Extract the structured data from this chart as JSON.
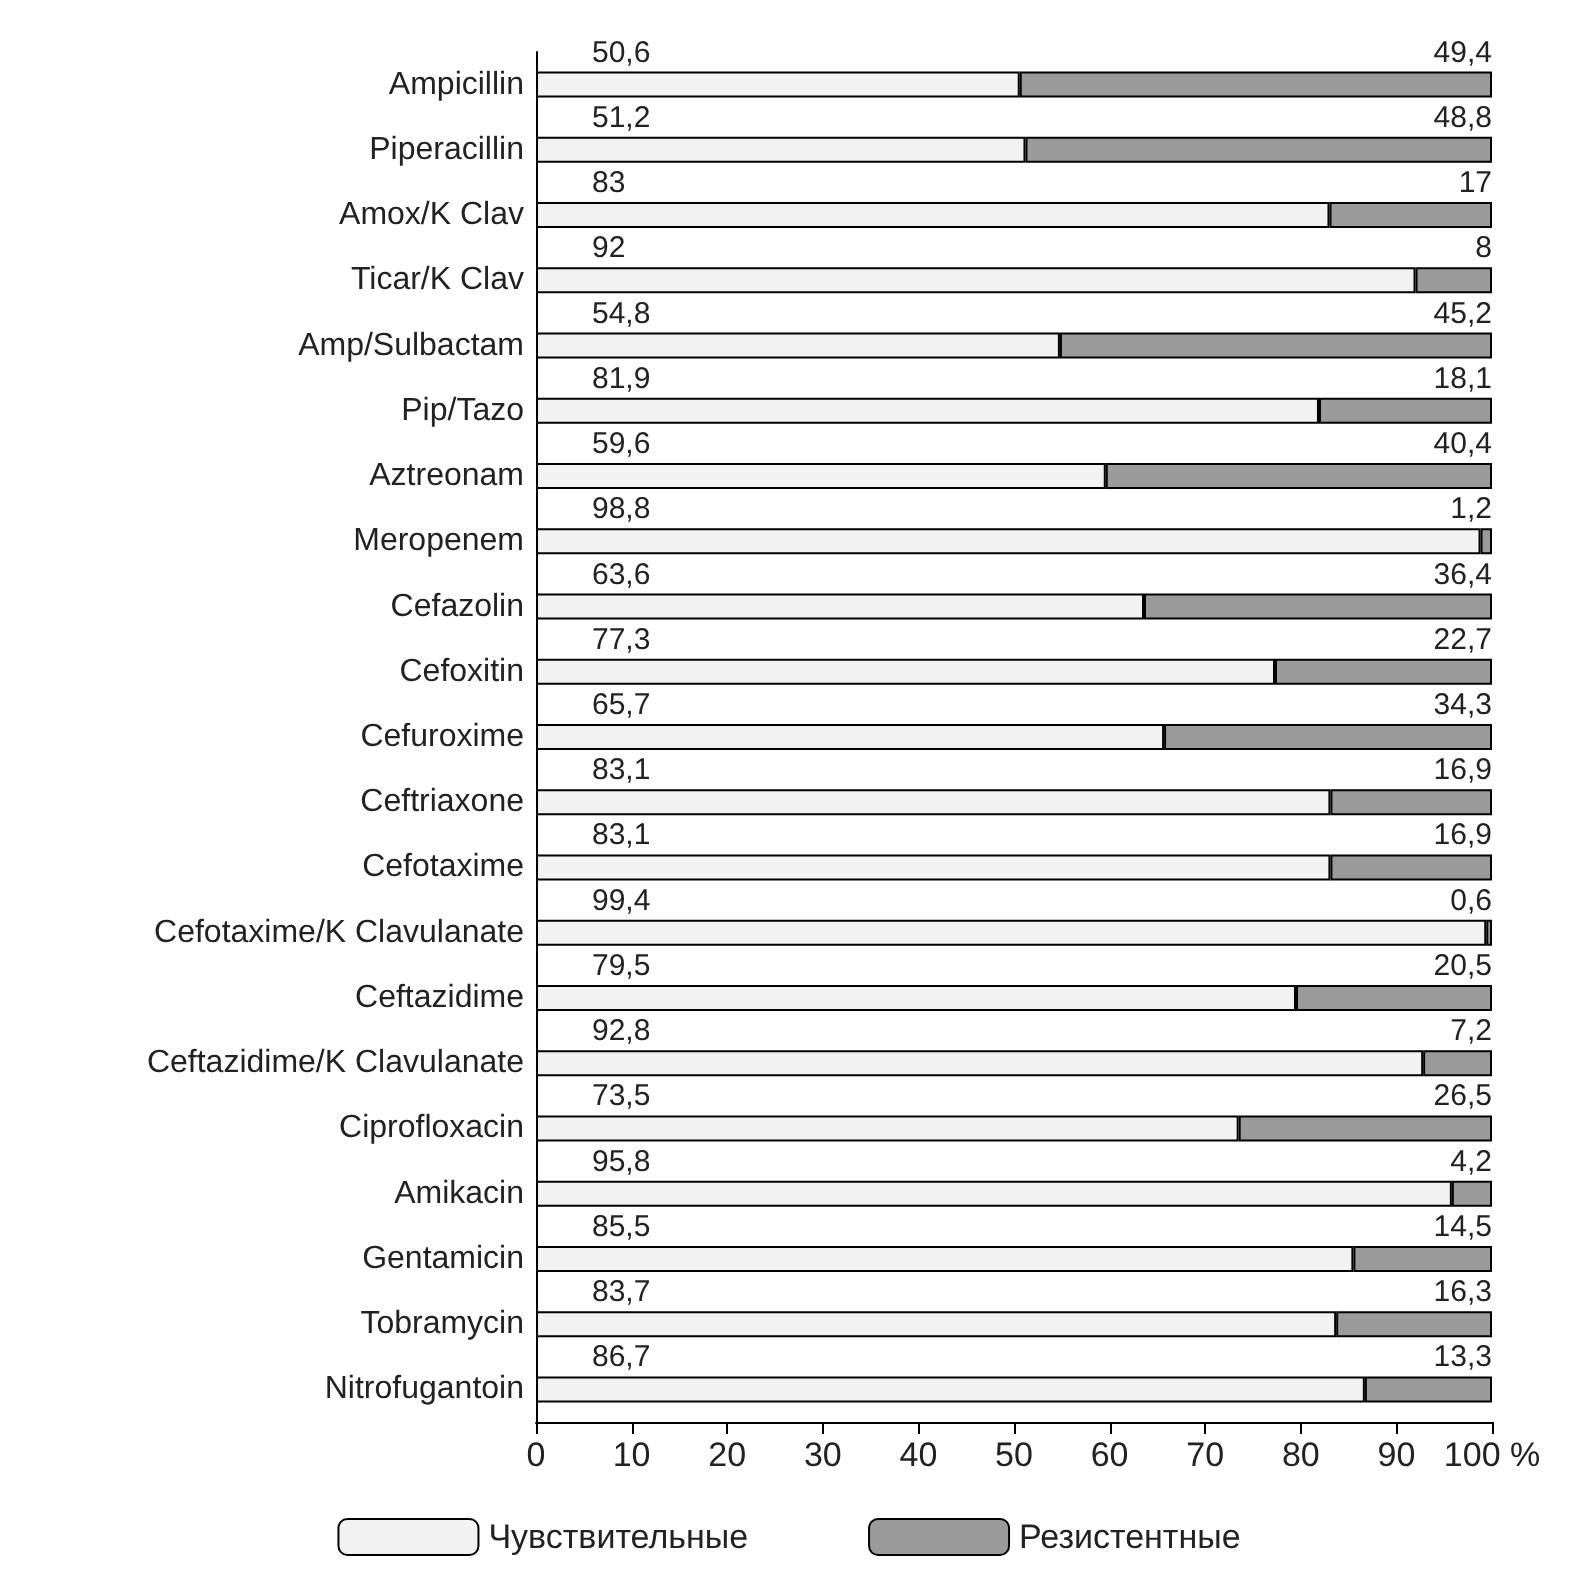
{
  "chart_data": {
    "type": "bar",
    "orientation": "horizontal",
    "stacked": true,
    "categories": [
      "Ampicillin",
      "Piperacillin",
      "Amox/K Clav",
      "Ticar/K Clav",
      "Amp/Sulbactam",
      "Pip/Tazo",
      "Aztreonam",
      "Meropenem",
      "Cefazolin",
      "Cefoxitin",
      "Cefuroxime",
      "Ceftriaxone",
      "Cefotaxime",
      "Cefotaxime/K Clavulanate",
      "Ceftazidime",
      "Ceftazidime/K Clavulanate",
      "Ciprofloxacin",
      "Amikacin",
      "Gentamicin",
      "Tobramycin",
      "Nitrofugantoin"
    ],
    "series": [
      {
        "name": "Чувствительные",
        "color": "#f2f2f2",
        "values": [
          50.6,
          51.2,
          83,
          92,
          54.8,
          81.9,
          59.6,
          98.8,
          63.6,
          77.3,
          65.7,
          83.1,
          83.1,
          99.4,
          79.5,
          92.8,
          73.5,
          95.8,
          85.5,
          83.7,
          86.7
        ],
        "value_labels": [
          "50,6",
          "51,2",
          "83",
          "92",
          "54,8",
          "81,9",
          "59,6",
          "98,8",
          "63,6",
          "77,3",
          "65,7",
          "83,1",
          "83,1",
          "99,4",
          "79,5",
          "92,8",
          "73,5",
          "95,8",
          "85,5",
          "83,7",
          "86,7"
        ]
      },
      {
        "name": "Резистентные",
        "color": "#9a9a9a",
        "values": [
          49.4,
          48.8,
          17,
          8,
          45.2,
          18.1,
          40.4,
          1.2,
          36.4,
          22.7,
          34.3,
          16.9,
          16.9,
          0.6,
          20.5,
          7.2,
          26.5,
          4.2,
          14.5,
          16.3,
          13.3
        ],
        "value_labels": [
          "49,4",
          "48,8",
          "17",
          "8",
          "45,2",
          "18,1",
          "40,4",
          "1,2",
          "36,4",
          "22,7",
          "34,3",
          "16,9",
          "16,9",
          "0,6",
          "20,5",
          "7,2",
          "26,5",
          "4,2",
          "14,5",
          "16,3",
          "13,3"
        ]
      }
    ],
    "xlim": [
      0,
      100
    ],
    "xticks": [
      0,
      10,
      20,
      30,
      40,
      50,
      60,
      70,
      80,
      90,
      {
        "value": 100,
        "label": "100 %"
      }
    ],
    "grid": false,
    "legend": "bottom"
  }
}
